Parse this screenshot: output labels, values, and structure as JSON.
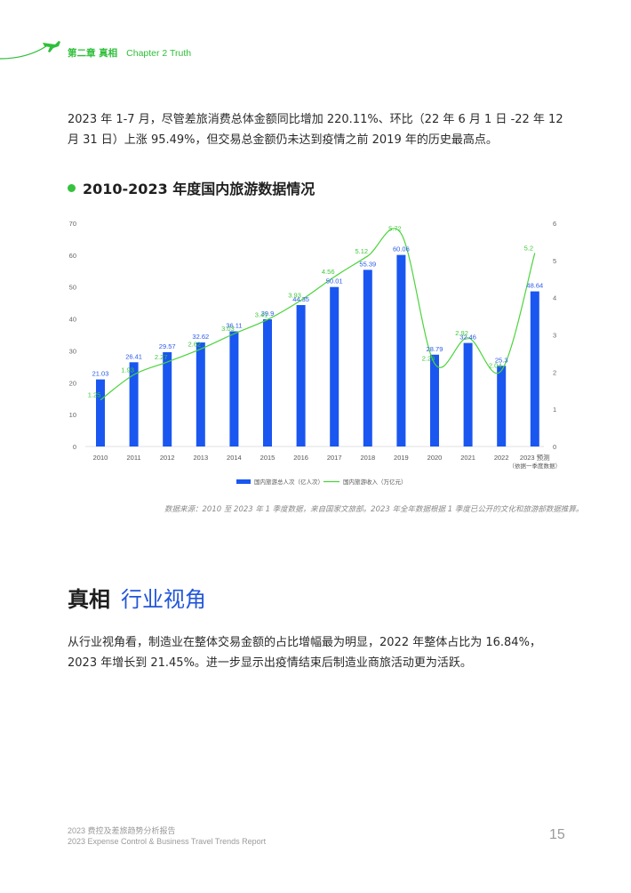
{
  "header": {
    "chapter_cn": "第二章 真相",
    "chapter_en": "Chapter 2 Truth",
    "accent_color": "#2fbf3a",
    "icon": "plane-icon"
  },
  "para1": "2023 年 1-7 月，尽管差旅消费总体金额同比增加 220.11%、环比（22 年 6 月 1 日 -22 年 12 月 31 日）上涨 95.49%，但交易总金额仍未达到疫情之前 2019 年的历史最高点。",
  "chart_title": "2010-2023 年度国内旅游数据情况",
  "chart_data": {
    "type": "bar",
    "categories": [
      "2010",
      "2011",
      "2012",
      "2013",
      "2014",
      "2015",
      "2016",
      "2017",
      "2018",
      "2019",
      "2020",
      "2021",
      "2022",
      "2023 预测"
    ],
    "category_note": "（依据一季度数据）",
    "series": [
      {
        "name": "国内旅游总人次（亿人次）",
        "type": "bar",
        "axis": "left",
        "color": "#1a56f0",
        "values": [
          21.03,
          26.41,
          29.57,
          32.62,
          36.11,
          39.9,
          44.35,
          50.01,
          55.39,
          60.06,
          28.79,
          32.46,
          25.3,
          48.64
        ],
        "labels": [
          "21.03",
          "26.41",
          "29.57",
          "32.62",
          "36.11",
          "39.9",
          "44.35",
          "50.01",
          "55.39",
          "60.06",
          "28.79",
          "32.46",
          "25.3",
          "48.64"
        ]
      },
      {
        "name": "国内旅游收入（万亿元）",
        "type": "line",
        "axis": "right",
        "color": "#4cd43c",
        "values": [
          1.25,
          1.93,
          2.27,
          2.62,
          3.03,
          3.41,
          3.93,
          4.56,
          5.12,
          5.72,
          2.23,
          2.92,
          2.04,
          5.2
        ],
        "labels": [
          "1.25",
          "1.93",
          "2.27",
          "2.62",
          "3.03",
          "3.41",
          "3.93",
          "4.56",
          "5.12",
          "5.72",
          "2.23",
          "2.92",
          "2.04",
          "5.2"
        ]
      }
    ],
    "y_left": {
      "min": 0,
      "max": 70,
      "ticks": [
        0,
        10,
        20,
        30,
        40,
        50,
        60,
        70
      ]
    },
    "y_right": {
      "min": 0,
      "max": 6,
      "ticks": [
        0,
        1,
        2,
        3,
        4,
        5,
        6
      ]
    },
    "grid": false,
    "legend_position": "bottom-center"
  },
  "source_note": "数据来源：2010 至 2023 年 1 季度数据，来自国家文旅部。2023 年全年数据根据 1 季度已公开的文化和旅游部数据推算。",
  "section": {
    "title_a": "真相",
    "title_b": "行业视角"
  },
  "para2": "从行业视角看，制造业在整体交易金额的占比增幅最为明显，2022 年整体占比为 16.84%，2023 年增长到 21.45%。进一步显示出疫情结束后制造业商旅活动更为活跃。",
  "footer": {
    "line1": "2023 费控及差旅趋势分析报告",
    "line2": "2023 Expense Control & Business Travel Trends Report",
    "page": "15"
  }
}
